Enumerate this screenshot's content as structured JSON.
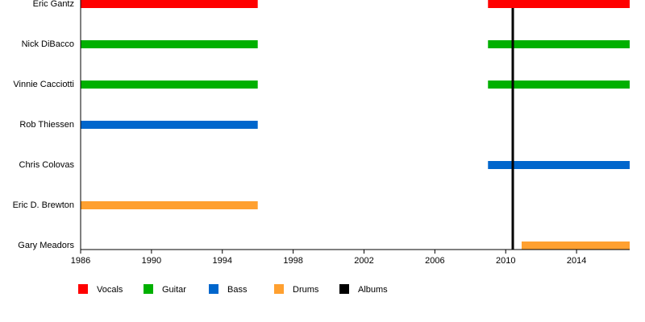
{
  "chart_data": {
    "type": "timeline",
    "categories": [
      "Eric Gantz",
      "Nick DiBacco",
      "Vinnie Cacciotti",
      "Rob Thiessen",
      "Chris Colovas",
      "Eric D. Brewton",
      "Gary Meadors"
    ],
    "series": [
      {
        "name": "Vocals",
        "color": "#ff0000",
        "values": [
          [
            [
              1986,
              1996
            ],
            [
              2009,
              2017
            ]
          ],
          null,
          null,
          null,
          null,
          null,
          null
        ]
      },
      {
        "name": "Guitar",
        "color": "#00b000",
        "values": [
          null,
          [
            [
              1986,
              1996
            ],
            [
              2009,
              2017
            ]
          ],
          [
            [
              1986,
              1996
            ],
            [
              2009,
              2017
            ]
          ],
          null,
          null,
          null,
          null
        ]
      },
      {
        "name": "Bass",
        "color": "#0066cc",
        "values": [
          null,
          null,
          null,
          [
            [
              1986,
              1996
            ]
          ],
          [
            [
              2009,
              2017
            ]
          ],
          null,
          null
        ]
      },
      {
        "name": "Drums",
        "color": "#ffa030",
        "values": [
          null,
          null,
          null,
          null,
          null,
          [
            [
              1986,
              1996
            ]
          ],
          [
            [
              2010.9,
              2017
            ]
          ]
        ]
      },
      {
        "name": "Albums",
        "color": "#000000",
        "lines": [
          2010.4
        ]
      }
    ],
    "xlim": [
      1986,
      2017
    ],
    "xticks": [
      1986,
      1990,
      1994,
      1998,
      2002,
      2006,
      2010,
      2014
    ]
  }
}
